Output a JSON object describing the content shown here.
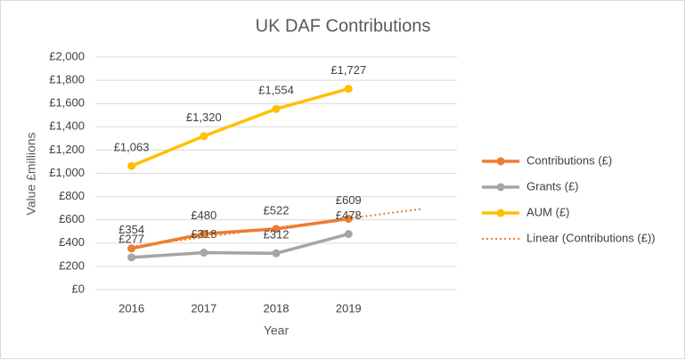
{
  "chart_data": {
    "type": "line",
    "title": "UK DAF Contributions",
    "x_label": "Year",
    "y_label": "Value £millions",
    "categories": [
      "2016",
      "2017",
      "2018",
      "2019",
      null
    ],
    "series": [
      {
        "name": "Contributions (£)",
        "color": "#ED7D31",
        "marker": true,
        "values": [
          354,
          480,
          522,
          609,
          null
        ],
        "value_labels": [
          "£354",
          "£480",
          "£522",
          "£609",
          null
        ]
      },
      {
        "name": "Grants  (£)",
        "color": "#A5A5A5",
        "marker": true,
        "values": [
          277,
          318,
          312,
          478,
          null
        ],
        "value_labels": [
          "£277",
          "£318",
          "£312",
          "£478",
          null
        ]
      },
      {
        "name": "AUM  (£)",
        "color": "#FFC000",
        "marker": true,
        "values": [
          1063,
          1320,
          1554,
          1727,
          null
        ],
        "value_labels": [
          "£1,063",
          "£1,320",
          "£1,554",
          "£1,727",
          null
        ]
      },
      {
        "name": "Linear (Contributions (£))",
        "color": "#ED7D31",
        "marker": false,
        "dotted": true,
        "values": [
          370,
          451,
          532,
          612,
          693
        ]
      }
    ],
    "ylim": [
      0,
      2000
    ],
    "yticks": [
      {
        "value": 0,
        "label": "£0"
      },
      {
        "value": 200,
        "label": "£200"
      },
      {
        "value": 400,
        "label": "£400"
      },
      {
        "value": 600,
        "label": "£600"
      },
      {
        "value": 800,
        "label": "£800"
      },
      {
        "value": 1000,
        "label": "£1,000"
      },
      {
        "value": 1200,
        "label": "£1,200"
      },
      {
        "value": 1400,
        "label": "£1,400"
      },
      {
        "value": 1600,
        "label": "£1,600"
      },
      {
        "value": 1800,
        "label": "£1,800"
      },
      {
        "value": 2000,
        "label": "£2,000"
      }
    ],
    "grid": true,
    "legend": "right"
  }
}
